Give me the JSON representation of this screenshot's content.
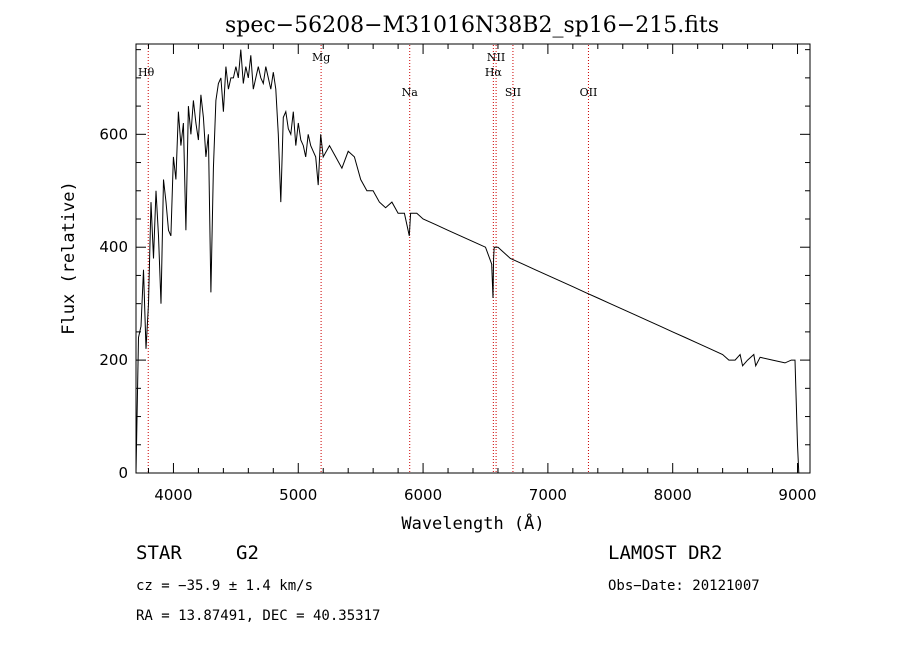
{
  "chart_data": {
    "type": "line",
    "title": "spec−56208−M31016N38B2_sp16−215.fits",
    "xlabel": "Wavelength (Å)",
    "ylabel": "Flux (relative)",
    "xlim": [
      3700,
      9100
    ],
    "ylim": [
      0,
      760
    ],
    "x_ticks": [
      4000,
      5000,
      6000,
      7000,
      8000,
      9000
    ],
    "y_ticks": [
      0,
      200,
      400,
      600
    ],
    "grid": false,
    "series": [
      {
        "x": [
          3700,
          3720,
          3740,
          3760,
          3780,
          3800,
          3820,
          3840,
          3860,
          3880,
          3900,
          3920,
          3940,
          3960,
          3980,
          4000,
          4020,
          4040,
          4060,
          4080,
          4100,
          4120,
          4140,
          4160,
          4180,
          4200,
          4220,
          4240,
          4260,
          4280,
          4300,
          4320,
          4340,
          4360,
          4380,
          4400,
          4420,
          4440,
          4460,
          4480,
          4500,
          4520,
          4540,
          4560,
          4580,
          4600,
          4620,
          4640,
          4660,
          4680,
          4700,
          4720,
          4740,
          4760,
          4780,
          4800,
          4820,
          4840,
          4860,
          4880,
          4900,
          4920,
          4940,
          4960,
          4980,
          5000,
          5020,
          5040,
          5060,
          5080,
          5100,
          5120,
          5140,
          5160,
          5180,
          5200,
          5250,
          5300,
          5350,
          5400,
          5450,
          5500,
          5550,
          5600,
          5650,
          5700,
          5750,
          5800,
          5850,
          5890,
          5900,
          5950,
          6000,
          6100,
          6200,
          6300,
          6400,
          6500,
          6550,
          6560,
          6565,
          6570,
          6600,
          6700,
          6800,
          6900,
          7000,
          7100,
          7200,
          7300,
          7400,
          7500,
          7600,
          7700,
          7800,
          7900,
          8000,
          8100,
          8200,
          8300,
          8400,
          8450,
          8500,
          8540,
          8560,
          8600,
          8650,
          8665,
          8700,
          8800,
          8900,
          8950,
          8980,
          9000,
          9010
        ],
        "y": [
          0,
          240,
          260,
          360,
          220,
          300,
          480,
          380,
          500,
          420,
          300,
          520,
          480,
          430,
          420,
          560,
          520,
          640,
          580,
          620,
          430,
          650,
          600,
          660,
          620,
          590,
          670,
          630,
          560,
          600,
          320,
          540,
          660,
          690,
          700,
          640,
          720,
          680,
          700,
          700,
          720,
          700,
          750,
          690,
          720,
          700,
          740,
          680,
          700,
          720,
          700,
          690,
          720,
          700,
          680,
          710,
          680,
          600,
          480,
          630,
          640,
          610,
          600,
          640,
          580,
          620,
          590,
          580,
          560,
          600,
          580,
          570,
          560,
          510,
          600,
          560,
          580,
          560,
          540,
          570,
          560,
          520,
          500,
          500,
          480,
          470,
          480,
          460,
          460,
          420,
          460,
          460,
          450,
          440,
          430,
          420,
          410,
          400,
          370,
          310,
          380,
          400,
          400,
          380,
          370,
          360,
          350,
          340,
          330,
          320,
          310,
          300,
          290,
          280,
          270,
          260,
          250,
          240,
          230,
          220,
          210,
          200,
          200,
          210,
          190,
          200,
          210,
          190,
          205,
          200,
          195,
          200,
          200,
          50,
          0
        ],
        "color": "#000000"
      }
    ],
    "spectral_lines": [
      {
        "name": "Hθ",
        "x": 3798,
        "label_row": 0
      },
      {
        "name": "Mg",
        "x": 5183,
        "label_row": 1
      },
      {
        "name": "Na",
        "x": 5893,
        "label_row": 3
      },
      {
        "name": "NII",
        "x": 6585,
        "label_row": 1
      },
      {
        "name": "Hα",
        "x": 6563,
        "label_row": 2
      },
      {
        "name": "SII",
        "x": 6720,
        "label_row": 3
      },
      {
        "name": "OII",
        "x": 7325,
        "label_row": 3
      }
    ],
    "line_marker_color": "#cc0000"
  },
  "footer": {
    "object_class": "STAR",
    "subclass": "G2",
    "survey": "LAMOST DR2",
    "redshift": "cz = −35.9 ± 1.4 km/s",
    "obs_date": "Obs−Date: 20121007",
    "coords": "RA =  13.87491, DEC =  40.35317"
  }
}
